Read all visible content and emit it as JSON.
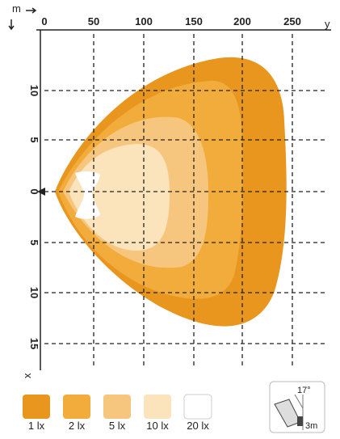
{
  "axes": {
    "corner_label": "m",
    "horizontal_label": "y",
    "vertical_label": "x",
    "horizontal_ticks": [
      "0",
      "50",
      "100",
      "150",
      "200",
      "250"
    ],
    "vertical_ticks": [
      "10",
      "5",
      "0",
      "5",
      "10",
      "15"
    ]
  },
  "legend": [
    "1 lx",
    "2 lx",
    "5 lx",
    "10 lx",
    "20 lx"
  ],
  "inset": {
    "angle": "17°",
    "height": "3m"
  }
}
